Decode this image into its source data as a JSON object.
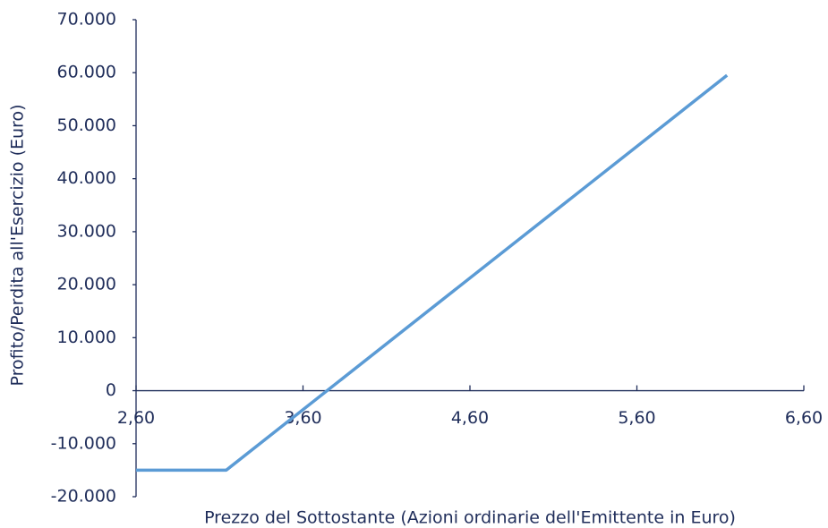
{
  "chart_data": {
    "type": "line",
    "x_label": "Prezzo del Sottostante (Azioni ordinarie dell'Emittente in Euro)",
    "y_label": "Profito/Perdita all'Esercizio (Euro)",
    "x": [
      2.6,
      3.14,
      6.14
    ],
    "series": [
      {
        "color": "#5b9bd5",
        "values": [
          -15000,
          -15000,
          59500
        ]
      }
    ],
    "xlim": [
      2.6,
      6.6
    ],
    "xticks": [
      {
        "value": 2.6,
        "label": "2,60"
      },
      {
        "value": 3.6,
        "label": "3,60"
      },
      {
        "value": 4.6,
        "label": "4,60"
      },
      {
        "value": 5.6,
        "label": "5,60"
      },
      {
        "value": 6.6,
        "label": "6,60"
      }
    ],
    "ylim": [
      -20000,
      70000
    ],
    "yticks": [
      {
        "value": -20000,
        "label": "-20.000"
      },
      {
        "value": -10000,
        "label": "-10.000"
      },
      0,
      {
        "value": 10000,
        "label": "10.000"
      },
      {
        "value": 20000,
        "label": "20.000"
      },
      {
        "value": 30000,
        "label": "30.000"
      },
      {
        "value": 40000,
        "label": "40.000"
      },
      {
        "value": 50000,
        "label": "50.000"
      },
      {
        "value": 60000,
        "label": "60.000"
      },
      {
        "value": 70000,
        "label": "70.000"
      }
    ],
    "grid": false
  }
}
